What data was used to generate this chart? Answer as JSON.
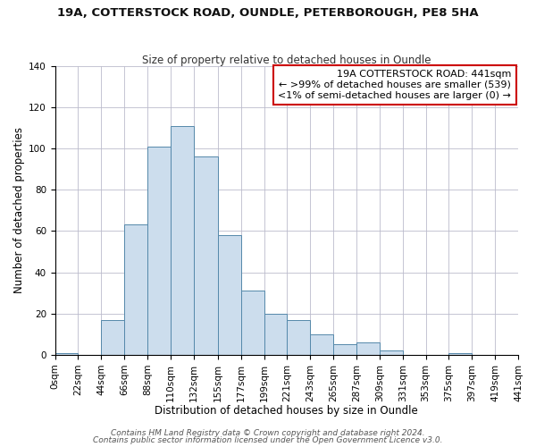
{
  "title1": "19A, COTTERSTOCK ROAD, OUNDLE, PETERBOROUGH, PE8 5HA",
  "title2": "Size of property relative to detached houses in Oundle",
  "xlabel": "Distribution of detached houses by size in Oundle",
  "ylabel": "Number of detached properties",
  "bar_values": [
    1,
    0,
    17,
    63,
    101,
    111,
    96,
    58,
    31,
    20,
    17,
    10,
    5,
    6,
    2,
    0,
    0,
    1,
    0,
    0
  ],
  "bin_edges": [
    0,
    22,
    44,
    66,
    88,
    110,
    132,
    155,
    177,
    199,
    221,
    243,
    265,
    287,
    309,
    331,
    353,
    375,
    397,
    419,
    441
  ],
  "bar_color": "#ccdded",
  "bar_edge_color": "#5588aa",
  "ylim": [
    0,
    140
  ],
  "yticks": [
    0,
    20,
    40,
    60,
    80,
    100,
    120,
    140
  ],
  "annotation_box_text": "19A COTTERSTOCK ROAD: 441sqm\n← >99% of detached houses are smaller (539)\n<1% of semi-detached houses are larger (0) →",
  "annotation_box_color": "#ffffff",
  "annotation_box_edge_color": "#cc0000",
  "footer1": "Contains HM Land Registry data © Crown copyright and database right 2024.",
  "footer2": "Contains public sector information licensed under the Open Government Licence v3.0.",
  "bg_color": "#ffffff",
  "grid_color": "#bbbbcc",
  "title1_fontsize": 9.5,
  "title2_fontsize": 8.5,
  "axis_label_fontsize": 8.5,
  "tick_label_fontsize": 7.5,
  "annotation_fontsize": 8,
  "footer_fontsize": 6.5
}
